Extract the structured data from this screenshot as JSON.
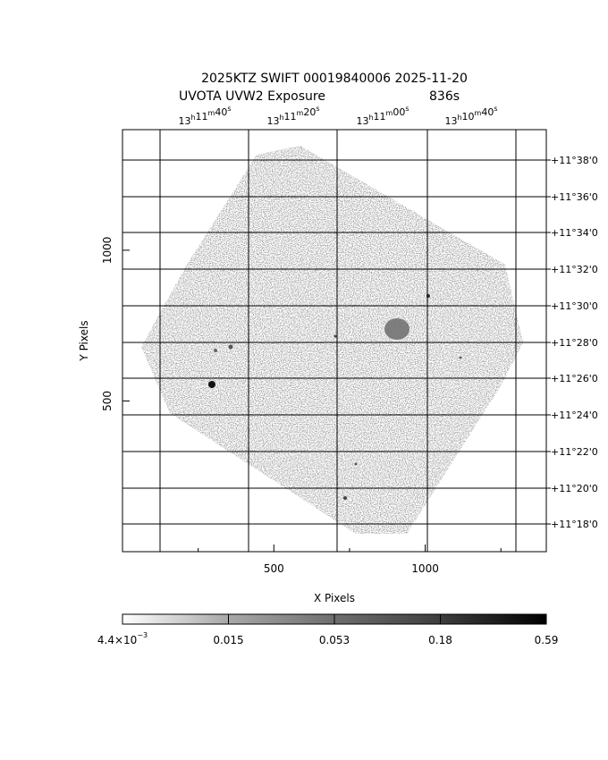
{
  "title": {
    "line1": "2025KTZ SWIFT 00019840006 2025-11-20",
    "line2_left": "UVOTA UVW2 Exposure",
    "line2_right": "836s"
  },
  "axes": {
    "xlabel": "X Pixels",
    "ylabel": "Y Pixels",
    "x_ticks": [
      {
        "label": "500",
        "value": 500
      },
      {
        "label": "1000",
        "value": 1000
      }
    ],
    "y_ticks": [
      {
        "label": "500",
        "value": 500
      },
      {
        "label": "1000",
        "value": 1000
      }
    ],
    "x_range": [
      0,
      1400
    ],
    "y_range": [
      0,
      1400
    ]
  },
  "ra_ticks": [
    {
      "h": "13",
      "m": "11",
      "s": "40"
    },
    {
      "h": "13",
      "m": "11",
      "s": "20"
    },
    {
      "h": "13",
      "m": "11",
      "s": "00"
    },
    {
      "h": "13",
      "m": "10",
      "s": "40"
    }
  ],
  "dec_ticks": [
    "+11°38'0",
    "+11°36'0",
    "+11°34'0",
    "+11°32'0",
    "+11°30'0",
    "+11°28'0",
    "+11°26'0",
    "+11°24'0",
    "+11°22'0",
    "+11°20'0",
    "+11°18'0"
  ],
  "colorbar": {
    "labels": [
      {
        "mantissa": "4.4×10",
        "exp": "−3"
      },
      {
        "text": "0.015"
      },
      {
        "text": "0.053"
      },
      {
        "text": "0.18"
      },
      {
        "text": "0.59"
      }
    ]
  },
  "colors": {
    "background": "#ffffff",
    "ink": "#000000",
    "field": "#a8a8a8"
  }
}
